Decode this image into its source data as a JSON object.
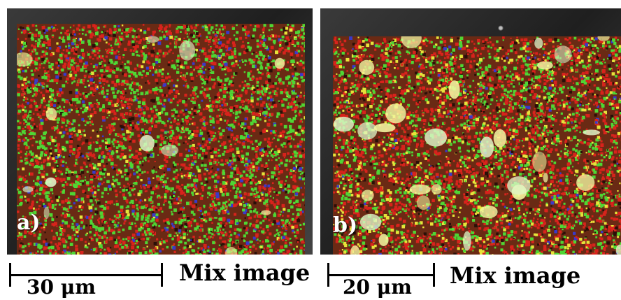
{
  "panels": [
    {
      "label": "a)",
      "caption": "Mix image",
      "scale_bar_text": "30 μm"
    },
    {
      "label": "b)",
      "caption": "Mix image",
      "scale_bar_text": "20 μm"
    }
  ],
  "colors": {
    "red_phase": "#d8231c",
    "green_phase": "#4fd634",
    "blue_phase": "#3a3ac8",
    "yellow_mix": "#e6e33a",
    "sem_background": "#2b2b2b"
  }
}
